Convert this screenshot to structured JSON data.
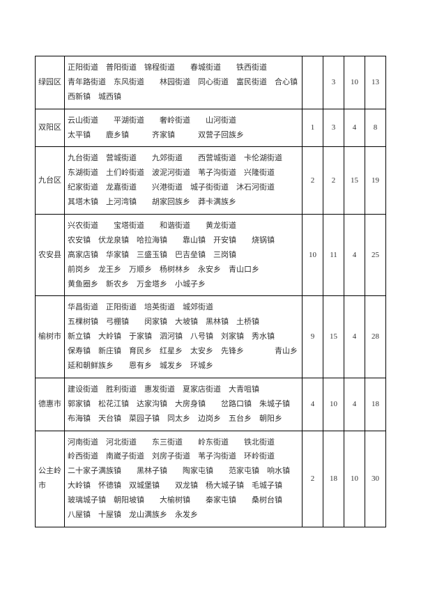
{
  "rows": [
    {
      "district": "绿园区",
      "content": "正阳街道　普阳街道　锦程街道　　春城街道　　铁西街道　青年路街道　东风街道　　林园街道　同心街道　富民街道　合心镇　西新镇　城西镇",
      "c1": "",
      "c2": "3",
      "c3": "10",
      "c4": "13"
    },
    {
      "district": "双阳区",
      "content": "云山街道　　平湖街道　　奢岭街道　　山河街道　　　　　　　太平镇　　鹿乡镇　　　齐家镇　　　双营子回族乡",
      "c1": "1",
      "c2": "3",
      "c3": "4",
      "c4": "8"
    },
    {
      "district": "九台区",
      "content": "九台街道　营城街道　　九郊街道　　西营城街道　卡伦湖街道　东湖街道　土们岭街道　波泥河街道　苇子沟街道　兴隆街道　纪家街道　龙嘉街道　　兴港街道　城子街街道　沐石河街道　其塔木镇　上河湾镇　　胡家回族乡　莽卡满族乡",
      "c1": "2",
      "c2": "2",
      "c3": "15",
      "c4": "19"
    },
    {
      "district": "农安县",
      "content": "兴农街道　　宝塔街道　　和谐街道　　黄龙街道　　　　　　　农安镇　伏龙泉镇　哈拉海镇　　靠山镇　开安镇　　烧锅镇　　高家店镇　华家镇　三盛玉镇　巴吉垒镇　三岗镇　　　　　　　前岗乡　龙王乡　万顺乡　杨树林乡　永安乡　青山口乡　　　黄鱼圈乡　新农乡　万金塔乡　小城子乡",
      "c1": "10",
      "c2": "11",
      "c3": "4",
      "c4": "25"
    },
    {
      "district": "榆树市",
      "content": "华昌街道　正阳街道　培英街道　城郊街道　　　　　　　　　五棵树镇　弓棚镇　　闵家镇　大坡镇　黑林镇　土桥镇　　　新立镇　大岭镇　于家镇　泗河镇　八号镇　刘家镇　秀水镇　保寿镇　新庄镇　育民乡　红星乡　太安乡　先锋乡　　　　青山乡　　延和朝鲜族乡　　恩有乡　城发乡　环城乡",
      "c1": "9",
      "c2": "15",
      "c3": "4",
      "c4": "28"
    },
    {
      "district": "德惠市",
      "content": "建设街道　胜利街道　惠发街道　夏家店街道　大青咀镇　　　郭家镇　松花江镇　达家沟镇　大房身镇　　岔路口镇　朱城子镇　布海镇　天台镇　菜园子镇　同太乡　边岗乡　五台乡　朝阳乡",
      "c1": "4",
      "c2": "10",
      "c3": "4",
      "c4": "18"
    },
    {
      "district": "公主岭市",
      "content": "河南街道　河北街道　　东三街道　　岭东街道　　铁北街道　　岭西街道　南崴子街道　刘房子街道　苇子沟街道　环岭街道　　二十家子满族镇　　黑林子镇　　陶家屯镇　　范家屯镇　响水镇　大岭镇　怀德镇　双城堡镇　　双龙镇　杨大城子镇　毛城子镇　玻璃城子镇　朝阳坡镇　　大榆树镇　　秦家屯镇　　桑树台镇　八屋镇　十屋镇　龙山满族乡　永发乡",
      "c1": "2",
      "c2": "18",
      "c3": "10",
      "c4": "30"
    }
  ]
}
